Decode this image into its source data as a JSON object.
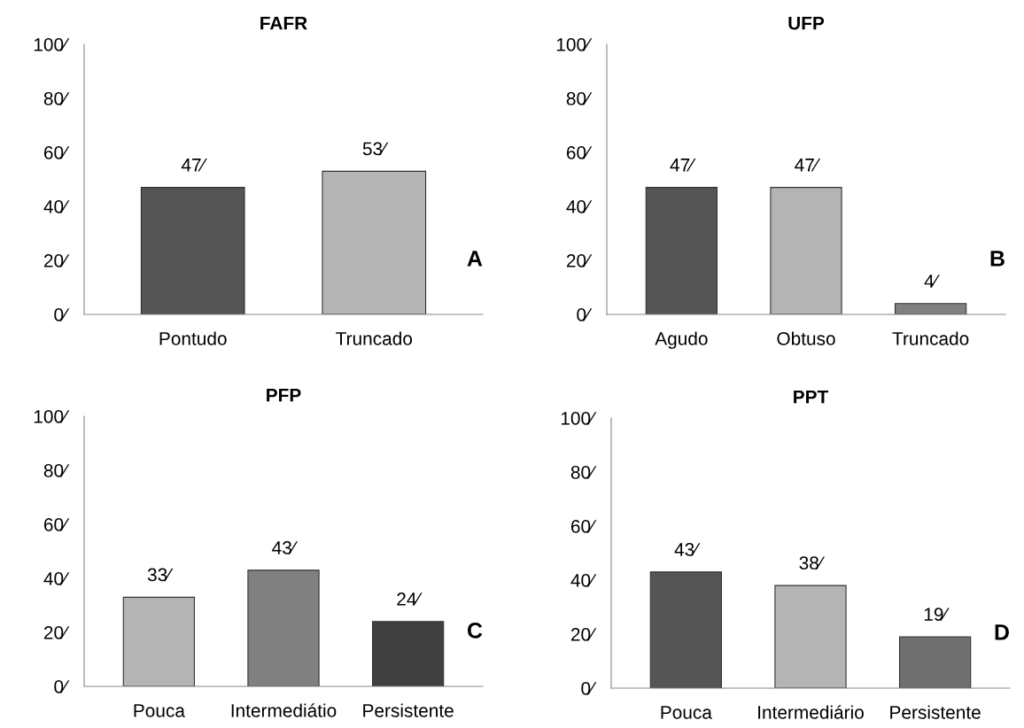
{
  "chart_data": [
    {
      "type": "bar",
      "title": "FAFR",
      "categories": [
        "Pontudo",
        "Truncado"
      ],
      "values": [
        47,
        53
      ],
      "colors": [
        "#545454",
        "#b4b4b4"
      ],
      "value_labels": [
        "47⁄",
        "53⁄"
      ],
      "ylim": [
        0,
        100
      ],
      "yticks": [
        {
          "value": 0,
          "label": "0⁄"
        },
        {
          "value": 20,
          "label": "20⁄"
        },
        {
          "value": 40,
          "label": "40⁄"
        },
        {
          "value": 60,
          "label": "60⁄"
        },
        {
          "value": 80,
          "label": "80⁄"
        },
        {
          "value": 100,
          "label": "100⁄"
        }
      ],
      "annotations": [
        "A"
      ],
      "grid": false,
      "legend": false
    },
    {
      "type": "bar",
      "title": "UFP",
      "categories": [
        "Agudo",
        "Obtuso",
        "Truncado"
      ],
      "values": [
        47,
        47,
        4
      ],
      "colors": [
        "#555555",
        "#b4b4b4",
        "#808080"
      ],
      "value_labels": [
        "47⁄",
        "47⁄",
        "4⁄"
      ],
      "ylim": [
        0,
        100
      ],
      "yticks": [
        {
          "value": 0,
          "label": "0⁄"
        },
        {
          "value": 20,
          "label": "20⁄"
        },
        {
          "value": 40,
          "label": "40⁄"
        },
        {
          "value": 60,
          "label": "60⁄"
        },
        {
          "value": 80,
          "label": "80⁄"
        },
        {
          "value": 100,
          "label": "100⁄"
        }
      ],
      "annotations": [
        "B"
      ],
      "grid": false,
      "legend": false
    },
    {
      "type": "bar",
      "title": "PFP",
      "categories": [
        "Pouca",
        "Intermediátio",
        "Persistente"
      ],
      "values": [
        33,
        43,
        24
      ],
      "colors": [
        "#b4b4b4",
        "#808080",
        "#404040"
      ],
      "value_labels": [
        "33⁄",
        "43⁄",
        "24⁄"
      ],
      "ylim": [
        0,
        100
      ],
      "yticks": [
        {
          "value": 0,
          "label": "0⁄"
        },
        {
          "value": 20,
          "label": "20⁄"
        },
        {
          "value": 40,
          "label": "40⁄"
        },
        {
          "value": 60,
          "label": "60⁄"
        },
        {
          "value": 80,
          "label": "80⁄"
        },
        {
          "value": 100,
          "label": "100⁄"
        }
      ],
      "annotations": [
        "C"
      ],
      "grid": false,
      "legend": false
    },
    {
      "type": "bar",
      "title": "PPT",
      "categories": [
        "Pouca",
        "Intermediário",
        "Persistente"
      ],
      "values": [
        43,
        38,
        19
      ],
      "colors": [
        "#555555",
        "#b4b4b4",
        "#707070"
      ],
      "value_labels": [
        "43⁄",
        "38⁄",
        "19⁄"
      ],
      "ylim": [
        0,
        100
      ],
      "yticks": [
        {
          "value": 0,
          "label": "0⁄"
        },
        {
          "value": 20,
          "label": "20⁄"
        },
        {
          "value": 40,
          "label": "40⁄"
        },
        {
          "value": 60,
          "label": "60⁄"
        },
        {
          "value": 80,
          "label": "80⁄"
        },
        {
          "value": 100,
          "label": "100⁄"
        }
      ],
      "annotations": [
        "D"
      ],
      "grid": false,
      "legend": false
    }
  ]
}
